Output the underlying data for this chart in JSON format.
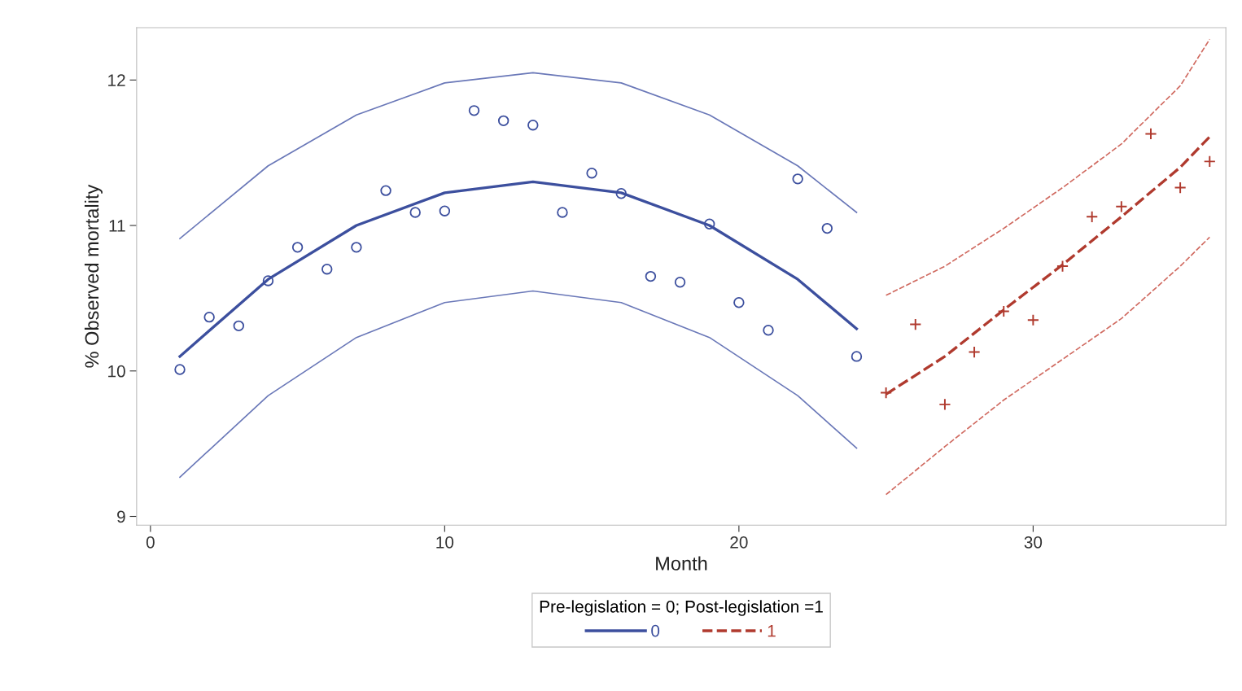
{
  "chart_data": {
    "type": "scatter",
    "xlabel": "Month",
    "ylabel": "% Observed mortality",
    "legend_title": "Pre-legislation = 0; Post-legislation =1",
    "legend": "bottom",
    "grid": false,
    "xlim": [
      -0.47,
      36.55
    ],
    "ylim": [
      8.94,
      12.36
    ],
    "xticks": [
      0,
      10,
      20,
      30
    ],
    "yticks": [
      9,
      10,
      11,
      12
    ],
    "series": [
      {
        "marker": "circle",
        "color": "#3c4f9e",
        "x": [
          1,
          2,
          3,
          4,
          5,
          6,
          7,
          8,
          9,
          10,
          11,
          12,
          13,
          14,
          15,
          16,
          17,
          18,
          19,
          20,
          21,
          22,
          23,
          24
        ],
        "values": [
          10.01,
          10.37,
          10.31,
          10.62,
          10.85,
          10.7,
          10.85,
          11.24,
          11.09,
          11.1,
          11.79,
          11.72,
          11.69,
          11.09,
          11.36,
          11.22,
          10.65,
          10.61,
          11.01,
          10.47,
          10.28,
          11.32,
          10.98,
          10.1
        ]
      },
      {
        "type": "scatter",
        "marker": "cross",
        "color": "#b03a2e",
        "x": [
          25,
          26,
          27,
          28,
          29,
          30,
          31,
          32,
          33,
          34,
          35,
          36
        ],
        "values": [
          9.85,
          10.32,
          9.77,
          10.13,
          10.41,
          10.35,
          10.72,
          11.06,
          11.13,
          11.63,
          11.26,
          11.44
        ]
      },
      {
        "type": "line",
        "name": "0",
        "line_style": "solid",
        "color": "#3c4f9e",
        "x": [
          1,
          4,
          7,
          10,
          13,
          16,
          19,
          22,
          24
        ],
        "values": [
          10.1,
          10.63,
          11.0,
          11.225,
          11.3,
          11.225,
          11.0,
          10.63,
          10.29
        ]
      },
      {
        "type": "line",
        "line_style": "solid",
        "color": "#6a78b8",
        "x": [
          1,
          4,
          7,
          10,
          13,
          16,
          19,
          22,
          24
        ],
        "values": [
          10.91,
          11.41,
          11.76,
          11.98,
          12.05,
          11.98,
          11.76,
          11.41,
          11.09
        ]
      },
      {
        "type": "line",
        "line_style": "solid",
        "color": "#6a78b8",
        "x": [
          1,
          4,
          7,
          10,
          13,
          16,
          19,
          22,
          24
        ],
        "values": [
          9.27,
          9.83,
          10.23,
          10.47,
          10.55,
          10.47,
          10.23,
          9.83,
          9.47
        ]
      },
      {
        "type": "line",
        "name": "1",
        "line_style": "dashed",
        "color": "#b03a2e",
        "x": [
          25,
          27,
          29,
          31,
          33,
          35,
          36
        ],
        "values": [
          9.84,
          10.1,
          10.42,
          10.73,
          11.06,
          11.4,
          11.61
        ]
      },
      {
        "type": "line",
        "line_style": "dashed",
        "color": "#d06a60",
        "x": [
          25,
          27,
          29,
          31,
          33,
          35,
          36
        ],
        "values": [
          10.52,
          10.72,
          10.98,
          11.26,
          11.56,
          11.96,
          12.28
        ]
      },
      {
        "type": "line",
        "line_style": "dashed",
        "color": "#d06a60",
        "x": [
          25,
          27,
          29,
          31,
          33,
          35,
          36
        ],
        "values": [
          9.15,
          9.48,
          9.8,
          10.08,
          10.36,
          10.72,
          10.92
        ]
      }
    ]
  }
}
